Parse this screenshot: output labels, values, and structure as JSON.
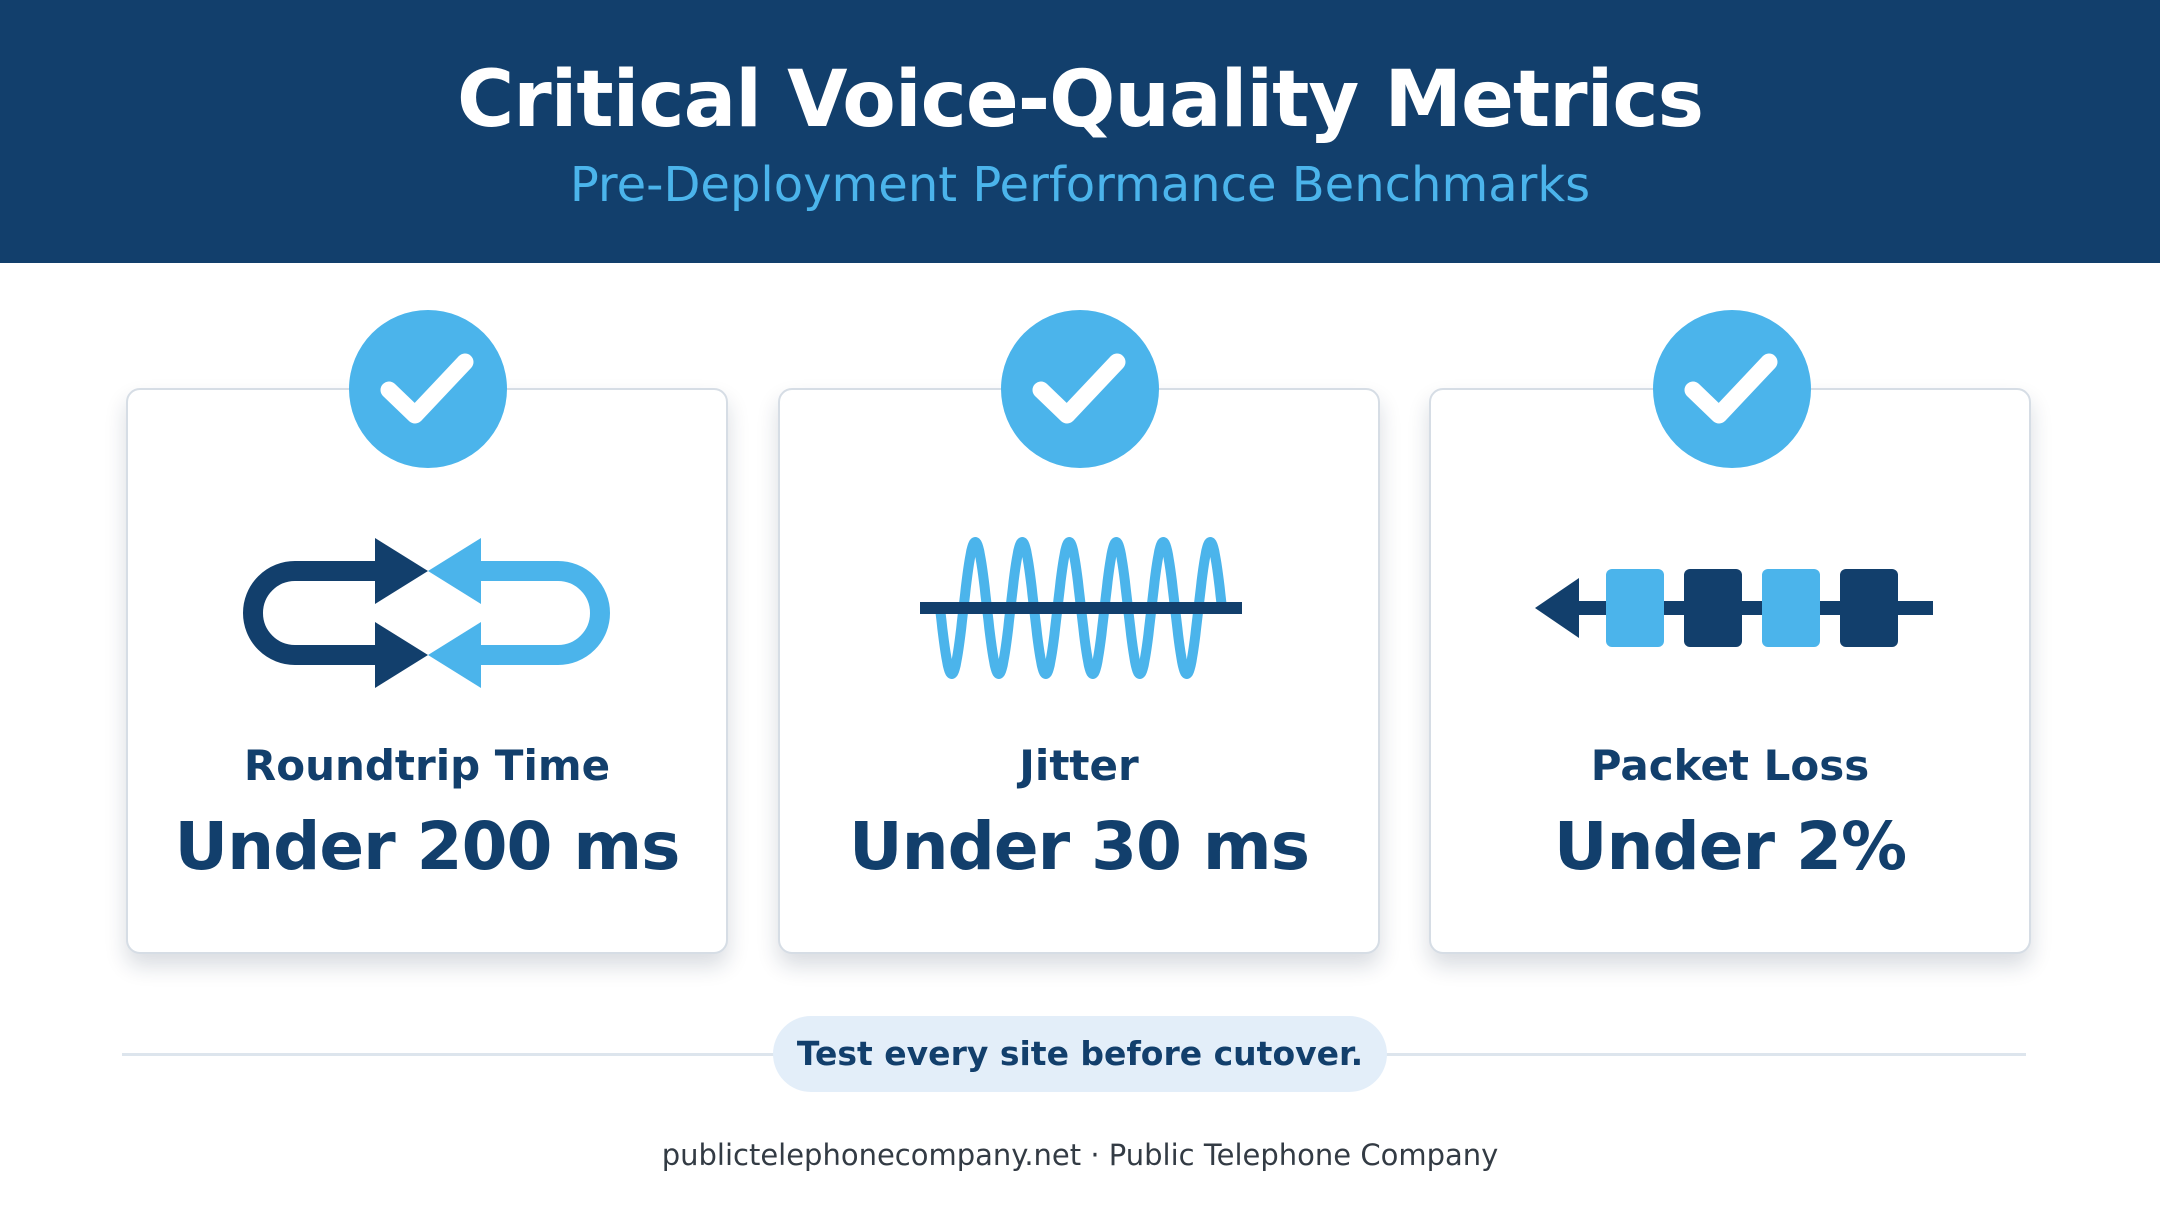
{
  "header": {
    "title": "Critical Voice-Quality Metrics",
    "subtitle": "Pre-Deployment Performance Benchmarks"
  },
  "cards": [
    {
      "icon": "roundtrip-arrows-icon",
      "label": "Roundtrip Time",
      "value": "Under 200 ms"
    },
    {
      "icon": "jitter-wave-icon",
      "label": "Jitter",
      "value": "Under 30 ms"
    },
    {
      "icon": "packet-loss-icon",
      "label": "Packet Loss",
      "value": "Under 2%"
    }
  ],
  "callout": {
    "text": "Test every site before cutover."
  },
  "footer": {
    "text": "publictelephonecompany.net · Public Telephone Company"
  },
  "colors": {
    "navy": "#123f6c",
    "accent": "#4bb4eb",
    "pill_bg": "#e3eef9"
  }
}
